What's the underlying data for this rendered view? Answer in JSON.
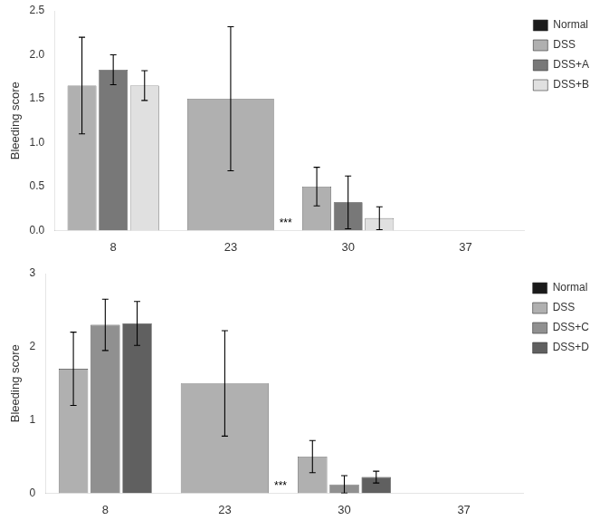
{
  "chart_data": [
    {
      "type": "bar",
      "ylabel": "Bleeding score",
      "categories": [
        "8",
        "23",
        "30",
        "37"
      ],
      "series": [
        {
          "name": "Normal",
          "color": "#1a1a1a",
          "values": [
            null,
            null,
            null,
            null
          ],
          "errors": [
            null,
            null,
            null,
            null
          ]
        },
        {
          "name": "DSS",
          "color": "#b0b0b0",
          "values": [
            1.65,
            1.5,
            0.5,
            null
          ],
          "errors": [
            0.55,
            0.82,
            0.22,
            null
          ]
        },
        {
          "name": "DSS+A",
          "color": "#787878",
          "values": [
            1.83,
            null,
            0.32,
            null
          ],
          "errors": [
            0.17,
            null,
            0.3,
            null
          ]
        },
        {
          "name": "DSS+B",
          "color": "#e0e0e0",
          "values": [
            1.65,
            null,
            0.14,
            null
          ],
          "errors": [
            0.17,
            null,
            0.13,
            null
          ]
        }
      ],
      "ylim": [
        0,
        2.5
      ],
      "yticks": [
        {
          "value": 0,
          "label": "0.0"
        },
        0.5,
        {
          "value": 1,
          "label": "1.0"
        },
        1.5,
        {
          "value": 2,
          "label": "2.0"
        },
        2.5
      ],
      "annotations": [
        {
          "text": "***",
          "category": "23"
        }
      ],
      "grid": false,
      "legend": "right"
    },
    {
      "type": "bar",
      "ylabel": "Bleeding score",
      "categories": [
        "8",
        "23",
        "30",
        "37"
      ],
      "series": [
        {
          "name": "Normal",
          "color": "#1a1a1a",
          "values": [
            null,
            null,
            null,
            null
          ],
          "errors": [
            null,
            null,
            null,
            null
          ]
        },
        {
          "name": "DSS",
          "color": "#b0b0b0",
          "values": [
            1.7,
            1.5,
            0.5,
            null
          ],
          "errors": [
            0.5,
            0.72,
            0.22,
            null
          ]
        },
        {
          "name": "DSS+C",
          "color": "#909090",
          "values": [
            2.3,
            null,
            0.12,
            null
          ],
          "errors": [
            0.35,
            null,
            0.12,
            null
          ]
        },
        {
          "name": "DSS+D",
          "color": "#606060",
          "values": [
            2.32,
            null,
            0.22,
            null
          ],
          "errors": [
            0.3,
            null,
            0.08,
            null
          ]
        }
      ],
      "ylim": [
        0,
        3.0
      ],
      "yticks": [
        0,
        1,
        2,
        3
      ],
      "annotations": [
        {
          "text": "***",
          "category": "23"
        }
      ],
      "grid": false,
      "legend": "right"
    }
  ]
}
